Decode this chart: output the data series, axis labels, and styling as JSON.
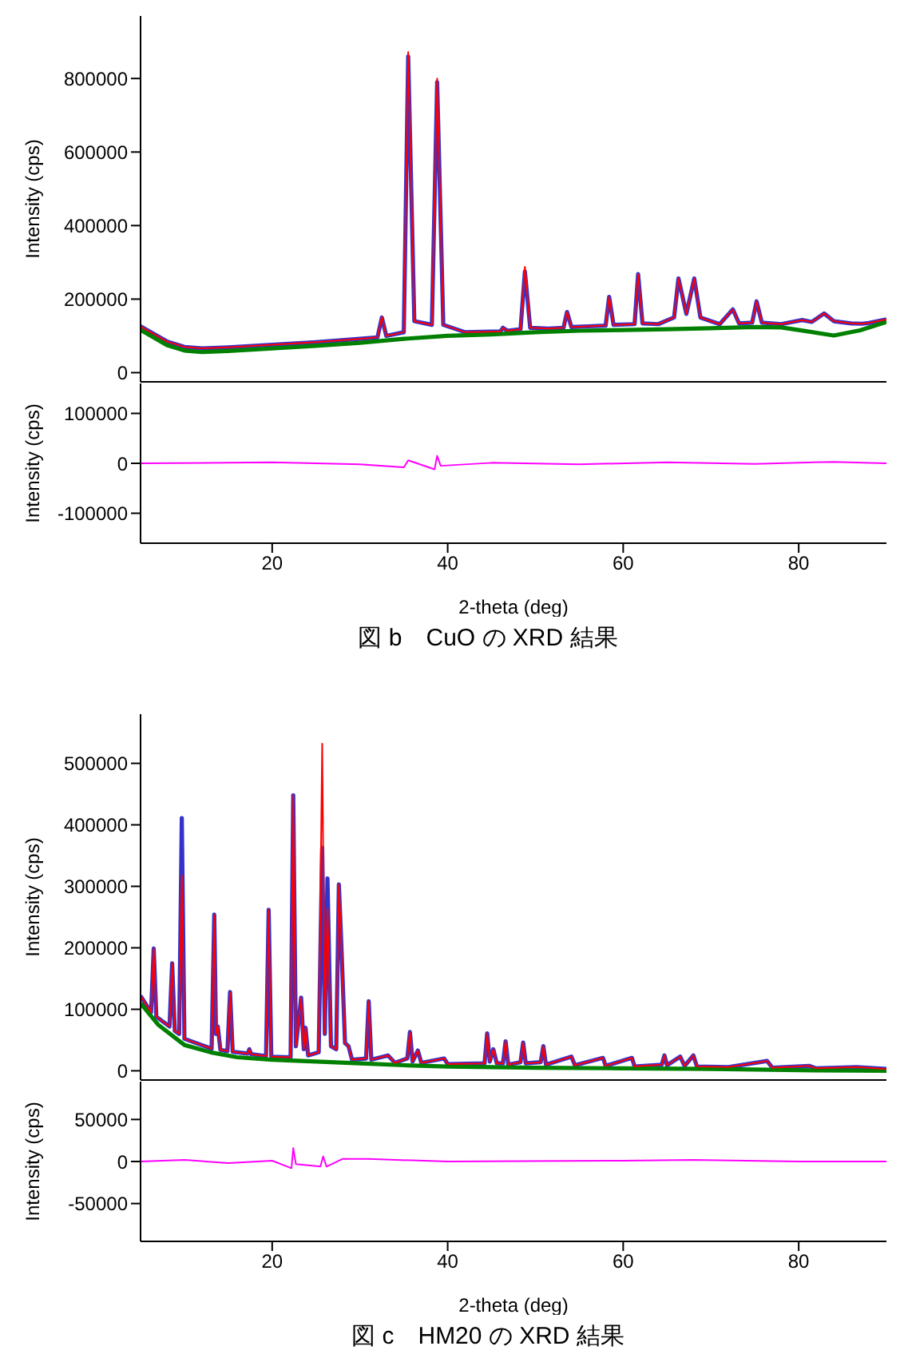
{
  "chart_data": [
    {
      "type": "line",
      "ylabel": "Intensity (cps)",
      "xlim": [
        5,
        90
      ],
      "ylim": [
        -25000,
        970000
      ],
      "yticks": [
        0,
        200000,
        400000,
        600000,
        800000
      ],
      "tick_labels": "y",
      "grid": false,
      "legend": false,
      "marker": "none",
      "line_style": "solid",
      "series": [
        {
          "color": "#3333cc",
          "x": [
            5,
            8,
            10,
            12,
            15,
            20,
            25,
            30,
            32,
            32.5,
            33,
            35,
            35.5,
            36.2,
            38.2,
            38.8,
            39.5,
            42,
            46,
            46.3,
            46.8,
            48.3,
            48.8,
            49.4,
            51.5,
            53.2,
            53.6,
            54.1,
            56,
            58,
            58.4,
            58.9,
            61.3,
            61.7,
            62.2,
            64,
            65.8,
            66.3,
            67.2,
            68.1,
            68.8,
            71,
            72.5,
            73.2,
            74.7,
            75.2,
            75.8,
            78,
            80.4,
            81.5,
            82.9,
            84,
            86,
            87.2,
            88,
            90
          ],
          "values": [
            126000,
            85000,
            70000,
            66000,
            69000,
            76000,
            83000,
            92000,
            96000,
            150000,
            100000,
            110000,
            860000,
            140000,
            130000,
            790000,
            130000,
            110000,
            112000,
            122000,
            114000,
            118000,
            275000,
            122000,
            120000,
            122000,
            165000,
            124000,
            126000,
            128000,
            206000,
            130000,
            132000,
            268000,
            134000,
            132000,
            150000,
            256000,
            160000,
            256000,
            150000,
            132000,
            172000,
            134000,
            136000,
            194000,
            136000,
            132000,
            143000,
            138000,
            161000,
            140000,
            134000,
            133000,
            135000,
            145000
          ]
        },
        {
          "color": "#ff0000",
          "x": [
            5,
            8,
            10,
            12,
            15,
            20,
            25,
            30,
            32,
            32.5,
            33,
            35,
            35.5,
            36.2,
            38.2,
            38.8,
            39.5,
            42,
            46,
            46.3,
            46.8,
            48.3,
            48.8,
            49.4,
            51.5,
            53.2,
            53.6,
            54.1,
            56,
            58,
            58.4,
            58.9,
            61.3,
            61.7,
            62.2,
            64,
            65.8,
            66.3,
            67.2,
            68.1,
            68.8,
            71,
            72.5,
            73.2,
            74.7,
            75.2,
            75.8,
            78,
            80.4,
            81.5,
            82.9,
            84,
            86,
            87.2,
            88,
            90
          ],
          "values": [
            126000,
            85000,
            70000,
            66000,
            69000,
            76000,
            83000,
            92000,
            96000,
            152000,
            100000,
            110000,
            872000,
            140000,
            130000,
            800000,
            130000,
            110000,
            112000,
            122000,
            114000,
            118000,
            288000,
            122000,
            120000,
            122000,
            165000,
            124000,
            126000,
            128000,
            206000,
            130000,
            132000,
            268000,
            134000,
            132000,
            150000,
            256000,
            160000,
            256000,
            150000,
            132000,
            172000,
            134000,
            136000,
            194000,
            136000,
            132000,
            143000,
            138000,
            161000,
            140000,
            134000,
            133000,
            135000,
            145000
          ]
        },
        {
          "color": "#008000",
          "x": [
            5,
            8,
            10,
            12,
            15,
            20,
            25,
            30,
            35,
            40,
            45,
            50,
            55,
            60,
            65,
            70,
            75,
            78,
            80,
            84,
            87,
            90
          ],
          "values": [
            116000,
            75000,
            60000,
            56000,
            59000,
            66000,
            73000,
            81000,
            92000,
            100000,
            104000,
            110000,
            114000,
            116000,
            118000,
            121000,
            124000,
            123000,
            116000,
            101000,
            115000,
            138000
          ]
        }
      ]
    },
    {
      "type": "line",
      "title": "図 b　CuO の XRD 結果",
      "xlabel": "2-theta (deg)",
      "ylabel": "Intensity (cps)",
      "xlim": [
        5,
        90
      ],
      "xticks": [
        20,
        40,
        60,
        80
      ],
      "ylim": [
        -160000,
        160000
      ],
      "yticks": [
        -100000,
        0,
        100000
      ],
      "grid": false,
      "legend": false,
      "marker": "none",
      "line_style": "solid",
      "series": [
        {
          "color": "#ff00ff",
          "x": [
            5,
            20,
            30,
            35,
            35.5,
            38.5,
            38.8,
            39.2,
            45,
            55,
            65,
            75,
            84,
            90
          ],
          "values": [
            0,
            2000,
            -2000,
            -8000,
            6000,
            -12000,
            15000,
            -5000,
            1000,
            -2000,
            2000,
            -1000,
            3000,
            0
          ]
        }
      ]
    },
    {
      "type": "line",
      "ylabel": "Intensity (cps)",
      "xlim": [
        5,
        90
      ],
      "ylim": [
        -15000,
        580000
      ],
      "yticks": [
        0,
        100000,
        200000,
        300000,
        400000,
        500000
      ],
      "tick_labels": "y",
      "grid": false,
      "legend": false,
      "marker": "none",
      "line_style": "solid",
      "series": [
        {
          "color": "#3333cc",
          "x": [
            5,
            6.2,
            6.5,
            6.8,
            8.3,
            8.6,
            8.9,
            9.4,
            9.7,
            10,
            13.1,
            13.4,
            13.6,
            13.8,
            14.1,
            14.9,
            15.2,
            15.5,
            17.2,
            17.4,
            17.6,
            19.3,
            19.6,
            19.9,
            22.1,
            22.4,
            22.7,
            23.3,
            23.6,
            23.8,
            24.1,
            25.3,
            25.7,
            26,
            26.3,
            26.7,
            27.3,
            27.6,
            27.9,
            28.3,
            28.7,
            29.1,
            30.7,
            31,
            31.3,
            33.2,
            34,
            35.4,
            35.7,
            36,
            36.6,
            37,
            39.6,
            40,
            44.2,
            44.5,
            44.8,
            45.2,
            45.6,
            46.3,
            46.6,
            46.9,
            48.3,
            48.6,
            48.9,
            50.6,
            50.9,
            51.2,
            54.1,
            54.5,
            57.7,
            58,
            61,
            61.3,
            64.4,
            64.7,
            65,
            66.5,
            67,
            68,
            68.4,
            72,
            76.4,
            77,
            81.2,
            82,
            86.6,
            90
          ],
          "values": [
            122000,
            95000,
            199000,
            88000,
            72000,
            175000,
            65000,
            60000,
            411000,
            52000,
            36000,
            254000,
            60000,
            72000,
            34000,
            32000,
            128000,
            31000,
            28000,
            35000,
            27000,
            24000,
            262000,
            23000,
            22000,
            448000,
            40000,
            119000,
            35000,
            70000,
            25000,
            30000,
            363000,
            60000,
            313000,
            40000,
            35000,
            303000,
            199000,
            45000,
            40000,
            18000,
            20000,
            113000,
            18000,
            25000,
            13000,
            20000,
            63000,
            15000,
            33000,
            13000,
            20000,
            11000,
            12000,
            61000,
            15000,
            35000,
            12000,
            12000,
            48000,
            10000,
            14000,
            46000,
            12000,
            14000,
            40000,
            10000,
            23000,
            9000,
            21000,
            8000,
            21000,
            7000,
            10000,
            25000,
            9000,
            23000,
            8000,
            25000,
            7000,
            6000,
            16000,
            5000,
            8000,
            4000,
            6000,
            3000
          ]
        },
        {
          "color": "#ff0000",
          "x": [
            5,
            6.2,
            6.5,
            6.8,
            8.3,
            8.6,
            8.9,
            9.4,
            9.7,
            10,
            13.1,
            13.4,
            13.6,
            13.8,
            14.1,
            14.9,
            15.2,
            15.5,
            17.2,
            17.4,
            17.6,
            19.3,
            19.6,
            19.9,
            22.1,
            22.4,
            22.7,
            23.3,
            23.6,
            23.8,
            24.1,
            25.3,
            25.7,
            26,
            26.3,
            26.7,
            27.3,
            27.6,
            27.9,
            28.3,
            28.7,
            29.1,
            30.7,
            31,
            31.3,
            33.2,
            34,
            35.4,
            35.7,
            36,
            36.6,
            37,
            39.6,
            40,
            44.2,
            44.5,
            44.8,
            45.2,
            45.6,
            46.3,
            46.6,
            46.9,
            48.3,
            48.6,
            48.9,
            50.6,
            50.9,
            51.2,
            54.1,
            54.5,
            57.7,
            58,
            61,
            61.3,
            64.4,
            64.7,
            65,
            66.5,
            67,
            68,
            68.4,
            72,
            76.4,
            77,
            81.2,
            82,
            86.6,
            90
          ],
          "values": [
            122000,
            95000,
            199000,
            88000,
            72000,
            175000,
            65000,
            60000,
            318000,
            52000,
            36000,
            254000,
            60000,
            72000,
            34000,
            32000,
            128000,
            31000,
            28000,
            35000,
            27000,
            24000,
            262000,
            23000,
            22000,
            448000,
            40000,
            119000,
            35000,
            70000,
            25000,
            30000,
            532000,
            60000,
            264000,
            40000,
            35000,
            303000,
            199000,
            45000,
            40000,
            18000,
            20000,
            113000,
            18000,
            25000,
            13000,
            20000,
            63000,
            15000,
            33000,
            13000,
            20000,
            11000,
            12000,
            61000,
            15000,
            35000,
            12000,
            12000,
            48000,
            10000,
            14000,
            46000,
            12000,
            14000,
            40000,
            10000,
            23000,
            9000,
            21000,
            8000,
            21000,
            7000,
            10000,
            25000,
            9000,
            23000,
            8000,
            25000,
            7000,
            6000,
            16000,
            5000,
            8000,
            4000,
            6000,
            3000
          ]
        },
        {
          "color": "#008000",
          "x": [
            5,
            7,
            10,
            13,
            16,
            20,
            25,
            30,
            35,
            40,
            50,
            60,
            70,
            80,
            90
          ],
          "values": [
            110000,
            75000,
            42000,
            30000,
            22000,
            18000,
            15000,
            12000,
            9000,
            7000,
            5000,
            4000,
            3000,
            1000,
            0
          ]
        }
      ]
    },
    {
      "type": "line",
      "title": "図 c　HM20 の XRD 結果",
      "xlabel": "2-theta (deg)",
      "ylabel": "Intensity (cps)",
      "xlim": [
        5,
        90
      ],
      "xticks": [
        20,
        40,
        60,
        80
      ],
      "ylim": [
        -95000,
        95000
      ],
      "yticks": [
        -50000,
        0,
        50000
      ],
      "grid": false,
      "legend": false,
      "marker": "none",
      "line_style": "solid",
      "series": [
        {
          "color": "#ff00ff",
          "x": [
            5,
            10,
            15,
            20,
            22.2,
            22.4,
            22.7,
            25.5,
            25.8,
            26.2,
            28,
            31,
            40,
            60,
            68,
            80,
            90
          ],
          "values": [
            0,
            2000,
            -2000,
            1000,
            -8000,
            16000,
            -3000,
            -6000,
            6000,
            -6000,
            3000,
            3000,
            0,
            1000,
            2000,
            0,
            0
          ]
        }
      ]
    }
  ]
}
